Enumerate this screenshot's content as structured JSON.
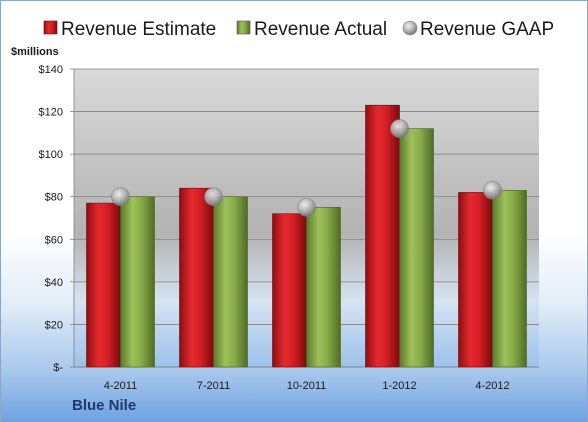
{
  "chart_data": {
    "type": "bar",
    "title": "",
    "ylabel": "$millions",
    "xlabel": "",
    "categories": [
      "4-2011",
      "7-2011",
      "10-2011",
      "1-2012",
      "4-2012"
    ],
    "series": [
      {
        "name": "Revenue Estimate",
        "type": "bar",
        "values": [
          77,
          84,
          72,
          123,
          82
        ],
        "color": "#d42026"
      },
      {
        "name": "Revenue Actual",
        "type": "bar",
        "values": [
          80,
          80,
          75,
          112,
          83
        ],
        "color": "#8db04e"
      },
      {
        "name": "Revenue GAAP",
        "type": "marker",
        "values": [
          80,
          80,
          75,
          112,
          83
        ],
        "color": "#a6a6a6"
      }
    ],
    "ylim": [
      0,
      140
    ],
    "yticks": [
      0,
      20,
      40,
      60,
      80,
      100,
      120,
      140
    ],
    "ytick_labels": [
      "$-",
      "$20",
      "$40",
      "$60",
      "$80",
      "$100",
      "$120",
      "$140"
    ],
    "legend": "top",
    "grid": true
  },
  "company": "Blue Nile"
}
